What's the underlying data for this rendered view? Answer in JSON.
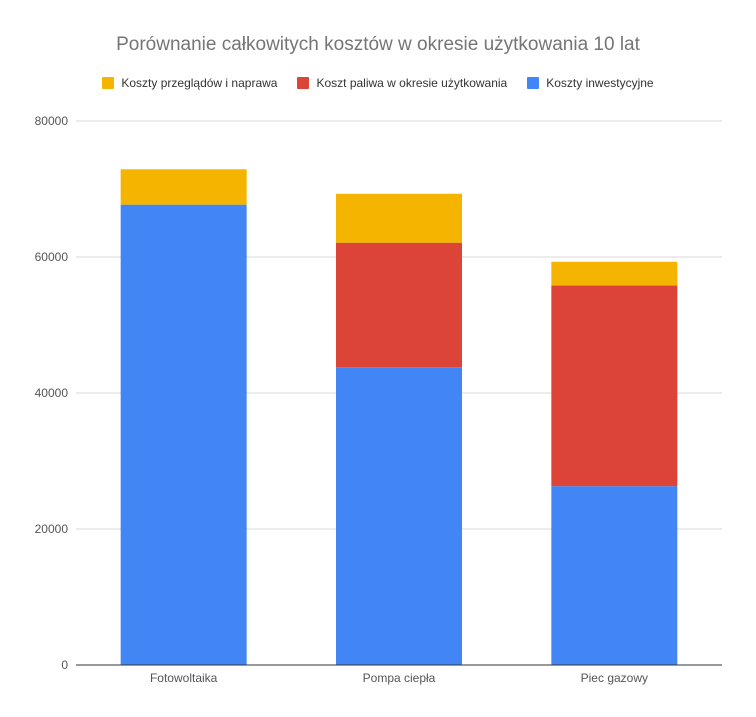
{
  "chart_data": {
    "type": "bar",
    "stacked": true,
    "title": "Porównanie całkowitych kosztów w okresie użytkowania 10 lat",
    "xlabel": "",
    "ylabel": "",
    "ylim": [
      0,
      80000
    ],
    "yticks": [
      0,
      20000,
      40000,
      60000,
      80000
    ],
    "grid": true,
    "legend_position": "top",
    "categories": [
      "Fotowoltaika",
      "Pompa ciepła",
      "Piec gazowy"
    ],
    "series": [
      {
        "name": "Koszty inwestycyjne",
        "color": "#4285F4",
        "values": [
          67700,
          43800,
          26300
        ]
      },
      {
        "name": "Koszt paliwa w okresie użytkowania",
        "color": "#DB4437",
        "values": [
          0,
          18300,
          29500
        ]
      },
      {
        "name": "Koszty przeglądów i naprawa",
        "color": "#F4B400",
        "values": [
          5200,
          7200,
          3500
        ]
      }
    ],
    "legend_order": [
      2,
      1,
      0
    ]
  }
}
